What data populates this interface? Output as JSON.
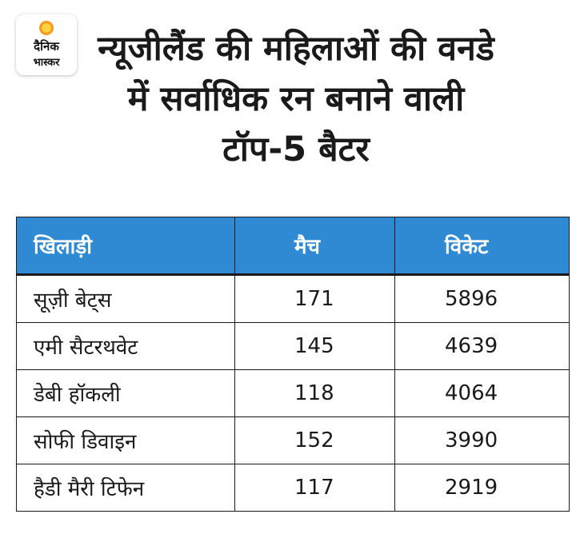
{
  "logo": {
    "line1": "दैनिक",
    "line2": "भास्कर",
    "icon": "sun-logo-icon",
    "sun_color": "#f79a1e"
  },
  "title": "न्यूजीलैंड की महिलाओं की वनडे में सर्वाधिक रन बनाने वाली टॉप-5 बैटर",
  "table": {
    "header_color": "#2f8ad3",
    "headers": [
      "खिलाड़ी",
      "मैच",
      "विकेट"
    ],
    "rows": [
      [
        "सूज़ी बेट्स",
        "171",
        "5896"
      ],
      [
        "एमी सैटरथवेट",
        "145",
        "4639"
      ],
      [
        "डेबी हॉकली",
        "118",
        "4064"
      ],
      [
        "सोफी डिवाइन",
        "152",
        "3990"
      ],
      [
        "हैडी मैरी टिफेन",
        "117",
        "2919"
      ]
    ]
  }
}
